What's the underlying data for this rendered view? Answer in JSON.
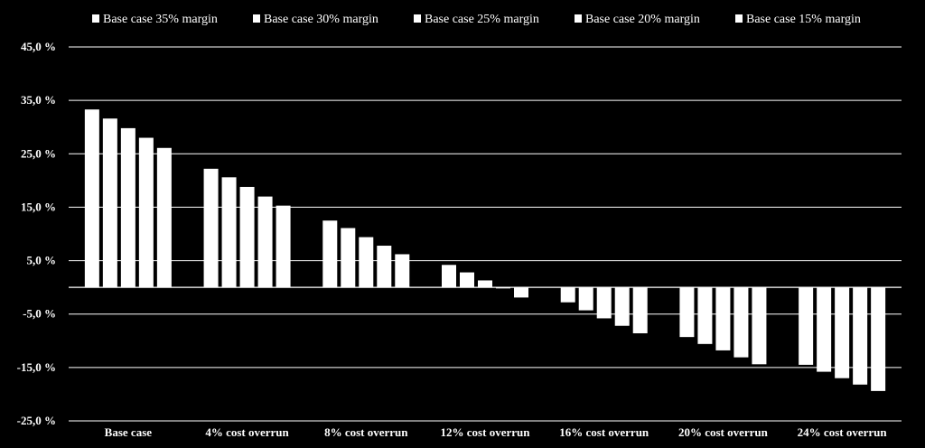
{
  "chart_data": {
    "type": "bar",
    "categories": [
      "Base case",
      "4% cost overrun",
      "8% cost overrun",
      "12% cost overrun",
      "16% cost overrun",
      "20% cost overrun",
      "24% cost overrun"
    ],
    "series": [
      {
        "name": "Base case 35% margin",
        "values": [
          33.3,
          22.2,
          12.5,
          4.2,
          -2.8,
          -9.3,
          -14.5
        ]
      },
      {
        "name": "Base case 30% margin",
        "values": [
          31.6,
          20.6,
          11.1,
          2.8,
          -4.3,
          -10.6,
          -15.8
        ]
      },
      {
        "name": "Base case 25% margin",
        "values": [
          29.8,
          18.8,
          9.4,
          1.3,
          -5.8,
          -11.8,
          -17.0
        ]
      },
      {
        "name": "Base case 20% margin",
        "values": [
          28.0,
          17.0,
          7.8,
          -0.2,
          -7.2,
          -13.1,
          -18.2
        ]
      },
      {
        "name": "Base case 15% margin",
        "values": [
          26.1,
          15.3,
          6.2,
          -1.9,
          -8.6,
          -14.4,
          -19.4
        ]
      }
    ],
    "y_ticks": [
      "45,0 %",
      "35,0 %",
      "25,0 %",
      "15,0 %",
      "5,0 %",
      "-5,0 %",
      "-15,0 %",
      "-25,0 %"
    ],
    "ylim": [
      -25,
      45
    ],
    "grid": true,
    "legend_position": "top",
    "colors": {
      "background": "#000000",
      "bars": "#ffffff",
      "grid": "#ffffff"
    }
  }
}
